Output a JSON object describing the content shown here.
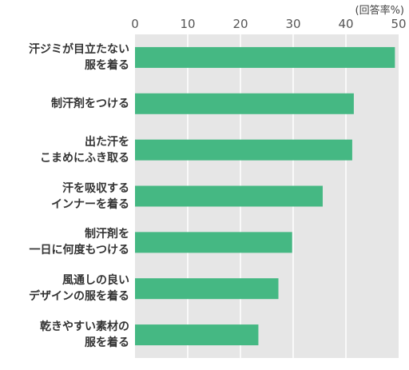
{
  "chart_data": {
    "type": "bar",
    "orientation": "horizontal",
    "unit_label": "(回答率%)",
    "categories": [
      "汗ジミが目立たない\n服を着る",
      "制汗剤をつける",
      "出た汗を\nこまめにふき取る",
      "汗を吸収する\nインナーを着る",
      "制汗剤を\n一日に何度もつける",
      "風通しの良い\nデザインの服を着る",
      "乾きやすい素材の\n服を着る"
    ],
    "values": [
      49.3,
      41.5,
      41.2,
      35.6,
      29.8,
      27.2,
      23.4
    ],
    "xlim": [
      0,
      50
    ],
    "xticks": [
      0,
      10,
      20,
      30,
      40,
      50
    ],
    "grid": true,
    "colors": {
      "bar": "#45b883",
      "grid": "#ffffff",
      "plot_bg": "#e6e6e6"
    }
  }
}
